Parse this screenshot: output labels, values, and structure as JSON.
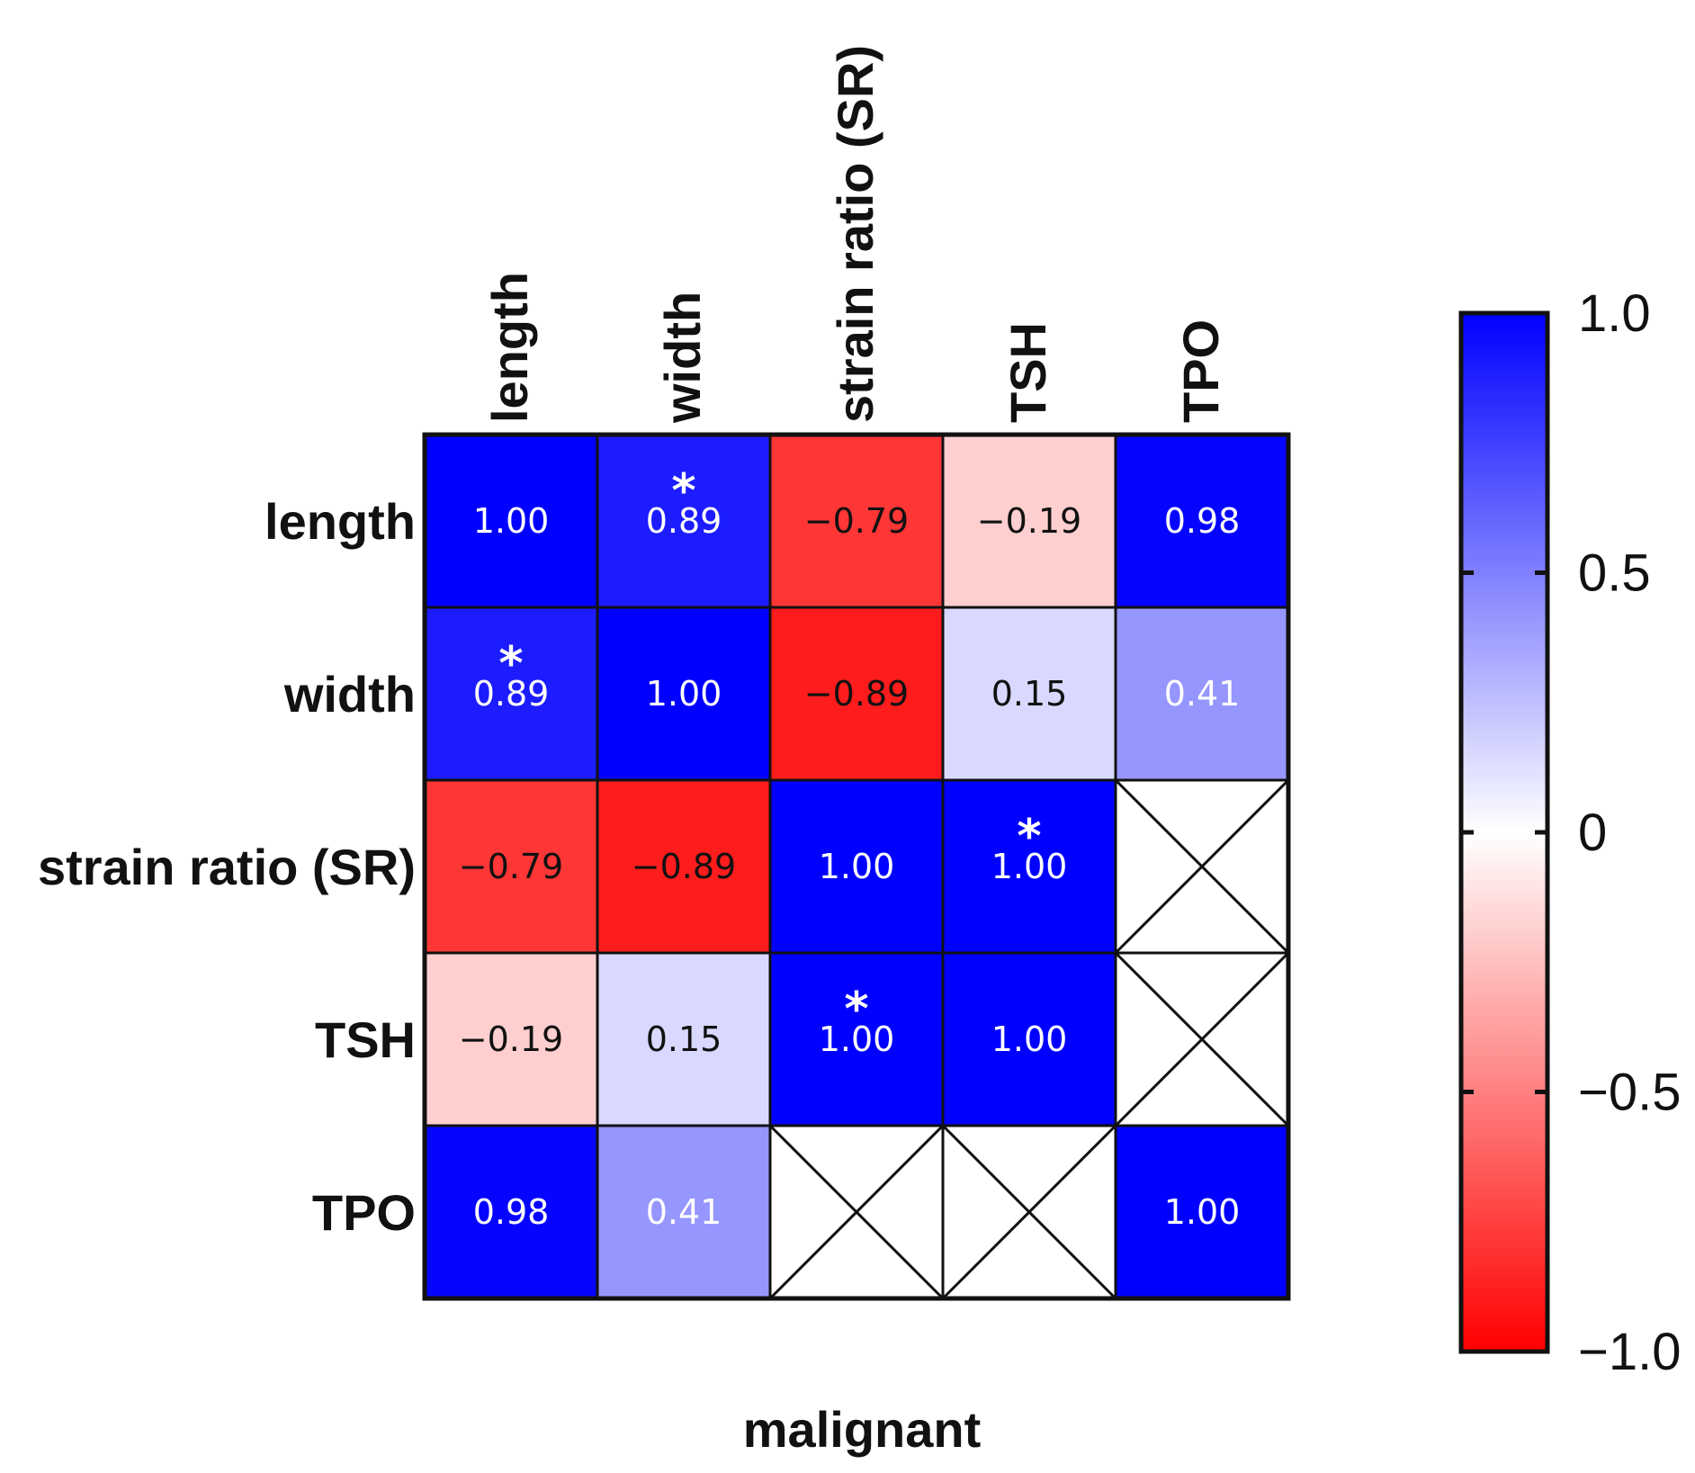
{
  "chart_data": {
    "type": "heatmap",
    "title": "",
    "xlabel": "malignant",
    "rows": [
      "length",
      "width",
      "strain ratio (SR)",
      "TSH",
      "TPO"
    ],
    "columns": [
      "length",
      "width",
      "strain ratio (SR)",
      "TSH",
      "TPO"
    ],
    "values": [
      [
        1.0,
        0.89,
        -0.79,
        -0.19,
        0.98
      ],
      [
        0.89,
        1.0,
        -0.89,
        0.15,
        0.41
      ],
      [
        -0.79,
        -0.89,
        1.0,
        1.0,
        null
      ],
      [
        -0.19,
        0.15,
        1.0,
        1.0,
        null
      ],
      [
        0.98,
        0.41,
        null,
        null,
        1.0
      ]
    ],
    "value_labels": [
      [
        "1.00",
        "0.89",
        "−0.79",
        "−0.19",
        "0.98"
      ],
      [
        "0.89",
        "1.00",
        "−0.89",
        "0.15",
        "0.41"
      ],
      [
        "−0.79",
        "−0.89",
        "1.00",
        "1.00",
        ""
      ],
      [
        "−0.19",
        "0.15",
        "1.00",
        "1.00",
        ""
      ],
      [
        "0.98",
        "0.41",
        "",
        "",
        "1.00"
      ]
    ],
    "significant": [
      [
        false,
        true,
        false,
        false,
        false
      ],
      [
        true,
        false,
        false,
        false,
        false
      ],
      [
        false,
        false,
        false,
        true,
        false
      ],
      [
        false,
        false,
        true,
        false,
        false
      ],
      [
        false,
        false,
        false,
        false,
        false
      ]
    ],
    "significance_marker": "*",
    "missing_marker": "crossed-out cell",
    "colorbar": {
      "min": -1.0,
      "max": 1.0,
      "ticks": [
        1.0,
        0.5,
        0,
        -0.5,
        -1.0
      ],
      "tick_labels": [
        "1.0",
        "0.5",
        "0",
        "−0.5",
        "−1.0"
      ],
      "colors": {
        "negative": "#ff0000",
        "zero": "#ffffff",
        "positive": "#0000ff"
      }
    }
  }
}
